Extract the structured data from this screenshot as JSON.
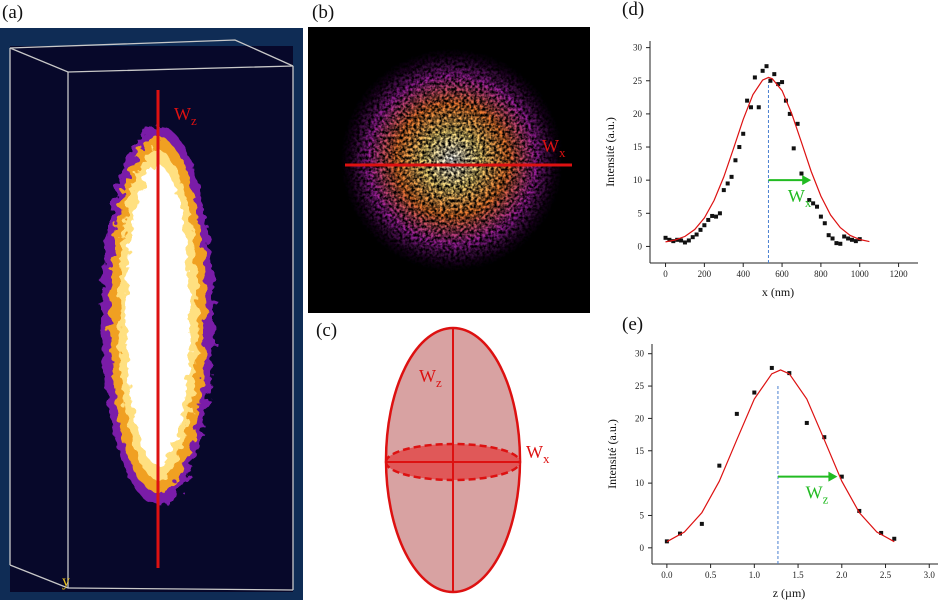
{
  "panels": {
    "a": {
      "label": "(a)",
      "width_label": "W",
      "width_sub": "z",
      "axis_label": "y"
    },
    "b": {
      "label": "(b)",
      "width_label": "W",
      "width_sub": "x"
    },
    "c": {
      "label": "(c)",
      "z_label": "W",
      "z_sub": "z",
      "x_label": "W",
      "x_sub": "x"
    }
  },
  "chart_data": [
    {
      "type": "scatter",
      "panel_label": "(d)",
      "xlabel": "x (nm)",
      "ylabel": "Intensité (a.u.)",
      "xlim": [
        -80,
        1300
      ],
      "ylim": [
        -2.5,
        31
      ],
      "xticks": [
        0,
        200,
        400,
        600,
        800,
        1000,
        1200
      ],
      "yticks": [
        0,
        5,
        10,
        15,
        20,
        25,
        30
      ],
      "series": [
        {
          "type": "scatter",
          "color": "#111111",
          "x": [
            0,
            20,
            40,
            60,
            80,
            100,
            120,
            140,
            160,
            180,
            200,
            220,
            240,
            260,
            280,
            300,
            320,
            340,
            360,
            380,
            400,
            420,
            440,
            460,
            480,
            500,
            520,
            540,
            560,
            580,
            600,
            620,
            640,
            660,
            680,
            700,
            720,
            740,
            760,
            780,
            800,
            820,
            840,
            860,
            880,
            900,
            920,
            940,
            960,
            980,
            1000
          ],
          "values": [
            1.3,
            1,
            0.8,
            1,
            0.9,
            0.6,
            0.9,
            1.4,
            1.8,
            2.5,
            3.2,
            4,
            4.6,
            4.5,
            5,
            8.5,
            9.5,
            10.5,
            13,
            15,
            17,
            22,
            21,
            25.5,
            21,
            26.5,
            27.2,
            25,
            26,
            24.5,
            24.8,
            22,
            20,
            14.8,
            18.5,
            11,
            10,
            7,
            6.5,
            6,
            4.5,
            3.5,
            1.7,
            1.2,
            0.5,
            0.4,
            1.5,
            1.2,
            1,
            0.8,
            1.1
          ]
        },
        {
          "type": "line",
          "color": "#dd1111",
          "x": [
            0,
            50,
            100,
            150,
            200,
            250,
            300,
            350,
            400,
            450,
            500,
            530,
            550,
            600,
            650,
            700,
            750,
            800,
            850,
            900,
            950,
            1000,
            1050
          ],
          "values": [
            0.69,
            0.97,
            1.52,
            2.56,
            4.3,
            6.95,
            10.5,
            14.77,
            19.17,
            22.9,
            25.1,
            25.5,
            25.3,
            23.5,
            20,
            15.7,
            11.3,
            7.6,
            4.75,
            2.84,
            1.68,
            1.05,
            0.73
          ]
        }
      ],
      "annotation": {
        "text": "W",
        "subscript": "x",
        "color": "#22bb22",
        "center": 530,
        "arrow_from": 530,
        "arrow_to": 750,
        "arrow_y": 10
      }
    },
    {
      "type": "scatter",
      "panel_label": "(e)",
      "xlabel": "z (µm)",
      "ylabel": "Intensité (a.u.)",
      "xlim": [
        -0.17,
        3.1
      ],
      "ylim": [
        -2.5,
        31.5
      ],
      "xticks": [
        {
          "value": 0,
          "label": "0.0"
        },
        {
          "value": 0.5,
          "label": "0.5"
        },
        {
          "value": 1,
          "label": "1.0"
        },
        {
          "value": 1.5,
          "label": "1.5"
        },
        {
          "value": 2,
          "label": "2.0"
        },
        {
          "value": 2.5,
          "label": "2.5"
        },
        {
          "value": 3,
          "label": "3.0"
        }
      ],
      "yticks": [
        0,
        5,
        10,
        15,
        20,
        25,
        30
      ],
      "series": [
        {
          "type": "scatter",
          "color": "#111111",
          "x": [
            0,
            0.15,
            0.4,
            0.6,
            0.8,
            1,
            1.2,
            1.4,
            1.6,
            1.8,
            2,
            2.2,
            2.45,
            2.6
          ],
          "values": [
            1,
            2.2,
            3.7,
            12.7,
            20.7,
            24,
            27.8,
            27,
            19.3,
            17.1,
            11,
            5.7,
            2.3,
            1.4
          ]
        },
        {
          "type": "line",
          "color": "#dd1111",
          "x": [
            0,
            0.2,
            0.4,
            0.6,
            0.8,
            1,
            1.2,
            1.3,
            1.4,
            1.6,
            1.8,
            2,
            2.2,
            2.4,
            2.6
          ],
          "values": [
            0.94,
            2.44,
            5.44,
            10.3,
            16.7,
            23,
            26.9,
            27.5,
            26.9,
            23,
            16.7,
            10.3,
            5.44,
            2.44,
            0.94
          ]
        }
      ],
      "annotation": {
        "text": "W",
        "subscript": "z",
        "color": "#22bb22",
        "center": 1.27,
        "arrow_from": 1.27,
        "arrow_to": 1.95,
        "arrow_y": 11
      }
    }
  ]
}
